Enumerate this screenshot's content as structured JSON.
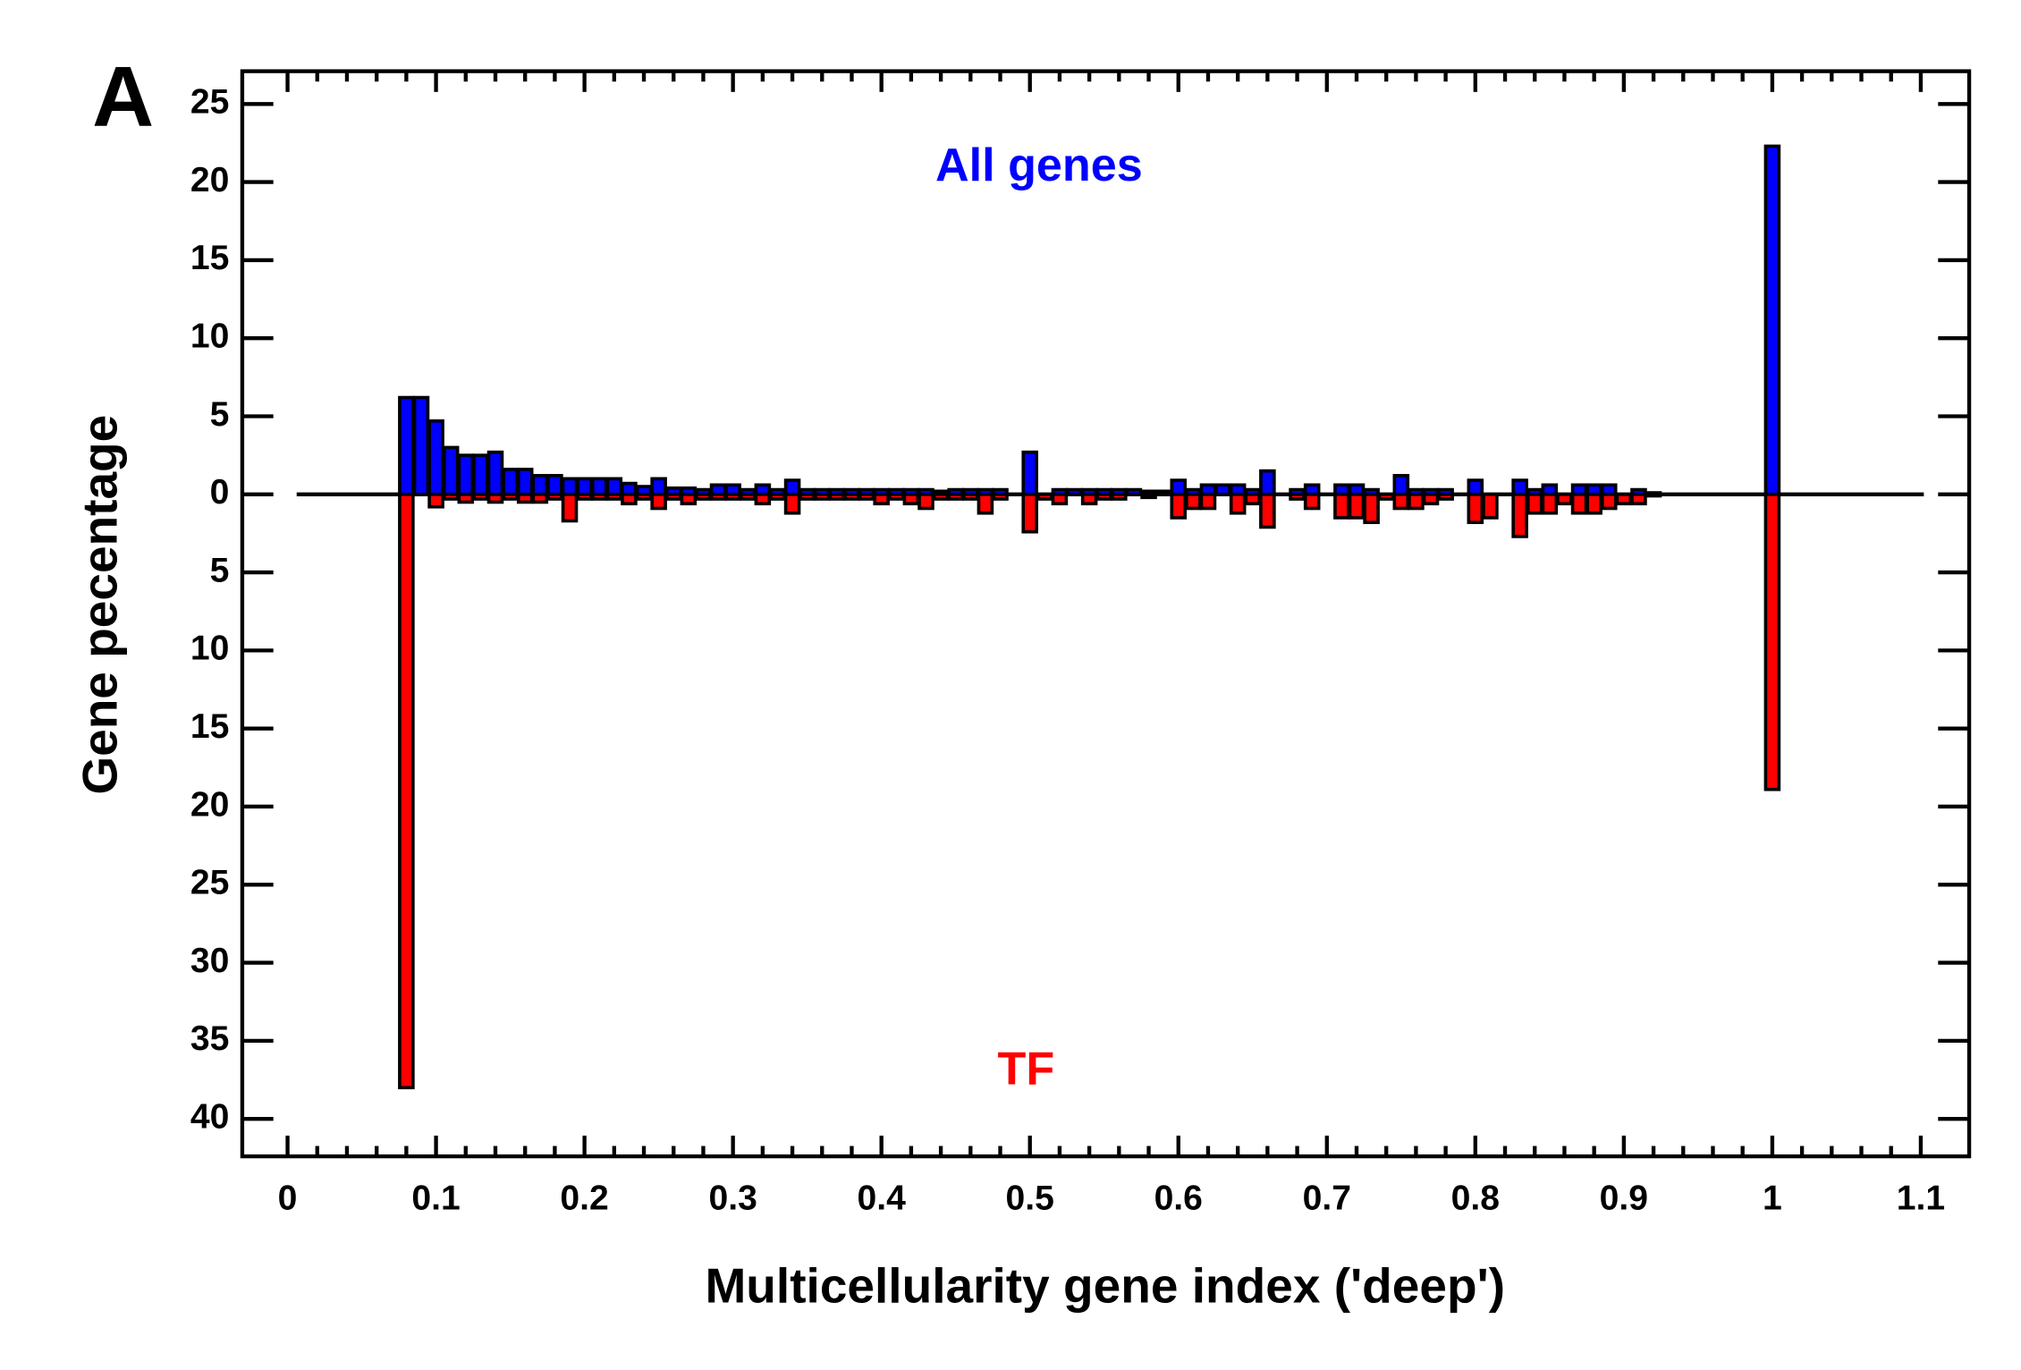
{
  "panel_label": "A",
  "chart_data": {
    "type": "bar",
    "xlabel": "Multicellularity gene index ('deep')",
    "ylabel": "Gene pecentage",
    "xlim": [
      -0.0305,
      1.1326
    ],
    "ylim": [
      -42.4,
      27.1
    ],
    "xticks": [
      0,
      0.1,
      0.2,
      0.3,
      0.4,
      0.5,
      0.6,
      0.7,
      0.8,
      0.9,
      1,
      1.1
    ],
    "yticks": [
      25,
      20,
      15,
      10,
      5,
      0,
      {
        "value": -5,
        "label": "5"
      },
      {
        "value": -10,
        "label": "10"
      },
      {
        "value": -15,
        "label": "15"
      },
      {
        "value": -20,
        "label": "20"
      },
      {
        "value": -25,
        "label": "25"
      },
      {
        "value": -30,
        "label": "30"
      },
      {
        "value": -35,
        "label": "35"
      },
      {
        "value": -40,
        "label": "40"
      }
    ],
    "x": [
      0.08,
      0.09,
      0.1,
      0.11,
      0.12,
      0.13,
      0.14,
      0.15,
      0.16,
      0.17,
      0.18,
      0.19,
      0.2,
      0.21,
      0.22,
      0.23,
      0.24,
      0.25,
      0.26,
      0.27,
      0.28,
      0.29,
      0.3,
      0.31,
      0.32,
      0.33,
      0.34,
      0.35,
      0.36,
      0.37,
      0.38,
      0.39,
      0.4,
      0.41,
      0.42,
      0.43,
      0.44,
      0.45,
      0.46,
      0.47,
      0.48,
      0.49,
      0.5,
      0.51,
      0.52,
      0.53,
      0.54,
      0.55,
      0.56,
      0.57,
      0.58,
      0.59,
      0.6,
      0.61,
      0.62,
      0.63,
      0.64,
      0.65,
      0.66,
      0.67,
      0.68,
      0.69,
      0.7,
      0.71,
      0.72,
      0.73,
      0.74,
      0.75,
      0.76,
      0.77,
      0.78,
      0.79,
      0.8,
      0.81,
      0.82,
      0.83,
      0.84,
      0.85,
      0.86,
      0.87,
      0.88,
      0.89,
      0.9,
      0.91,
      0.92,
      1.0
    ],
    "series": [
      {
        "name": "All genes",
        "color": "#0000ff",
        "values": [
          6.2,
          6.2,
          4.7,
          3.0,
          2.5,
          2.5,
          2.7,
          1.6,
          1.6,
          1.2,
          1.2,
          1.0,
          1.0,
          1.0,
          1.0,
          0.7,
          0.5,
          1.0,
          0.4,
          0.4,
          0.3,
          0.6,
          0.6,
          0.3,
          0.6,
          0.3,
          0.9,
          0.3,
          0.3,
          0.3,
          0.3,
          0.3,
          0.3,
          0.3,
          0.3,
          0.3,
          0.2,
          0.3,
          0.3,
          0.3,
          0.3,
          0,
          2.7,
          0,
          0.3,
          0.3,
          0.3,
          0.3,
          0.3,
          0.3,
          0.2,
          0.2,
          0.9,
          0.3,
          0.6,
          0.6,
          0.6,
          0.3,
          1.5,
          0,
          0.3,
          0.6,
          0,
          0.6,
          0.6,
          0.3,
          0,
          1.2,
          0.3,
          0.3,
          0.3,
          0,
          0.9,
          0,
          0,
          0.9,
          0.3,
          0.6,
          0,
          0.6,
          0.6,
          0.6,
          0,
          0.3,
          0.1,
          22.3
        ]
      },
      {
        "name": "TF",
        "color": "#ff0000",
        "values": [
          -38,
          0,
          -0.8,
          -0.3,
          -0.5,
          -0.3,
          -0.5,
          -0.3,
          -0.5,
          -0.5,
          -0.3,
          -1.7,
          -0.3,
          -0.3,
          -0.3,
          -0.6,
          -0.3,
          -0.9,
          -0.3,
          -0.6,
          -0.3,
          -0.3,
          -0.3,
          -0.3,
          -0.6,
          -0.3,
          -1.2,
          -0.3,
          -0.3,
          -0.3,
          -0.3,
          -0.3,
          -0.6,
          -0.3,
          -0.6,
          -0.9,
          -0.3,
          -0.3,
          -0.3,
          -1.2,
          -0.3,
          0,
          -2.4,
          -0.3,
          -0.6,
          0,
          -0.6,
          -0.3,
          -0.3,
          0,
          -0.2,
          0,
          -1.5,
          -0.9,
          -0.9,
          0,
          -1.2,
          -0.6,
          -2.1,
          0,
          -0.3,
          -0.9,
          0,
          -1.5,
          -1.5,
          -1.8,
          -0.3,
          -0.9,
          -0.9,
          -0.6,
          -0.3,
          0,
          -1.8,
          -1.5,
          0,
          -2.7,
          -1.2,
          -1.2,
          -0.6,
          -1.2,
          -1.2,
          -0.9,
          -0.6,
          -0.6,
          -0.1,
          -18.9
        ]
      }
    ]
  }
}
